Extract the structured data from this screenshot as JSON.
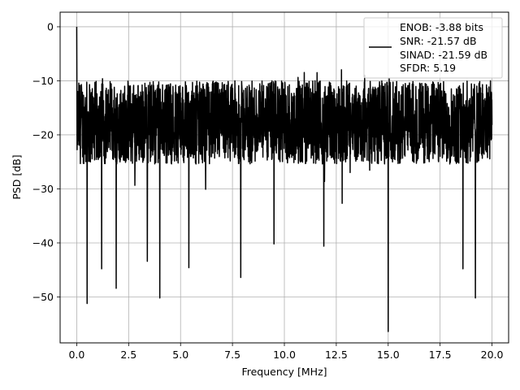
{
  "chart_data": {
    "type": "line",
    "title": "",
    "xlabel": "Frequency [MHz]",
    "ylabel": "PSD [dB]",
    "xlim": [
      -0.8,
      20.8
    ],
    "ylim": [
      -58.5,
      2.7
    ],
    "xticks": [
      0.0,
      2.5,
      5.0,
      7.5,
      10.0,
      12.5,
      15.0,
      17.5,
      20.0
    ],
    "xtick_labels": [
      "0.0",
      "2.5",
      "5.0",
      "7.5",
      "10.0",
      "12.5",
      "15.0",
      "17.5",
      "20.0"
    ],
    "yticks": [
      0,
      -10,
      -20,
      -30,
      -40,
      -50
    ],
    "ytick_labels": [
      "0",
      "−10",
      "−20",
      "−30",
      "−40",
      "−50"
    ],
    "grid": true,
    "legend_position": "top-right",
    "series": [
      {
        "name": "ENOB: -3.88 bits",
        "color": "#000000",
        "x_range": [
          0,
          20
        ],
        "noise_floor_band": [
          -32,
          -10
        ],
        "peak": {
          "x": 0.0,
          "y": 0.0
        },
        "dips": [
          {
            "x": 0.5,
            "y": -51.2
          },
          {
            "x": 1.2,
            "y": -44.8
          },
          {
            "x": 1.9,
            "y": -48.4
          },
          {
            "x": 3.4,
            "y": -43.4
          },
          {
            "x": 4.0,
            "y": -50.2
          },
          {
            "x": 5.4,
            "y": -44.6
          },
          {
            "x": 7.9,
            "y": -46.4
          },
          {
            "x": 9.5,
            "y": -40.2
          },
          {
            "x": 11.9,
            "y": -40.6
          },
          {
            "x": 15.0,
            "y": -56.4
          },
          {
            "x": 18.6,
            "y": -44.8
          },
          {
            "x": 19.2,
            "y": -50.2
          }
        ]
      }
    ],
    "legend_lines": [
      "ENOB: -3.88 bits",
      "SNR: -21.57 dB",
      "SINAD: -21.59 dB",
      "SFDR: 5.19"
    ]
  }
}
